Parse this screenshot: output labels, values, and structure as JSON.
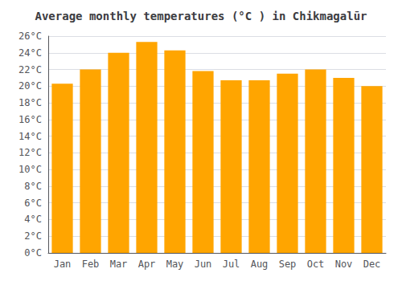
{
  "chart_data": {
    "type": "bar",
    "title": "Average monthly temperatures (°C ) in Chikmagalūr",
    "categories": [
      "Jan",
      "Feb",
      "Mar",
      "Apr",
      "May",
      "Jun",
      "Jul",
      "Aug",
      "Sep",
      "Oct",
      "Nov",
      "Dec"
    ],
    "values": [
      20.3,
      22.0,
      24.0,
      25.3,
      24.3,
      21.8,
      20.7,
      20.7,
      21.5,
      22.0,
      21.0,
      20.0
    ],
    "color": "#FFA500",
    "ylim": [
      0,
      26
    ],
    "yticks": [
      {
        "value": 0,
        "label": "0°C"
      },
      {
        "value": 2,
        "label": "2°C"
      },
      {
        "value": 4,
        "label": "4°C"
      },
      {
        "value": 6,
        "label": "6°C"
      },
      {
        "value": 8,
        "label": "8°C"
      },
      {
        "value": 10,
        "label": "10°C"
      },
      {
        "value": 12,
        "label": "12°C"
      },
      {
        "value": 14,
        "label": "14°C"
      },
      {
        "value": 16,
        "label": "16°C"
      },
      {
        "value": 18,
        "label": "18°C"
      },
      {
        "value": 20,
        "label": "20°C"
      },
      {
        "value": 22,
        "label": "22°C"
      },
      {
        "value": 24,
        "label": "24°C"
      },
      {
        "value": 26,
        "label": "26°C"
      }
    ],
    "grid": true
  }
}
